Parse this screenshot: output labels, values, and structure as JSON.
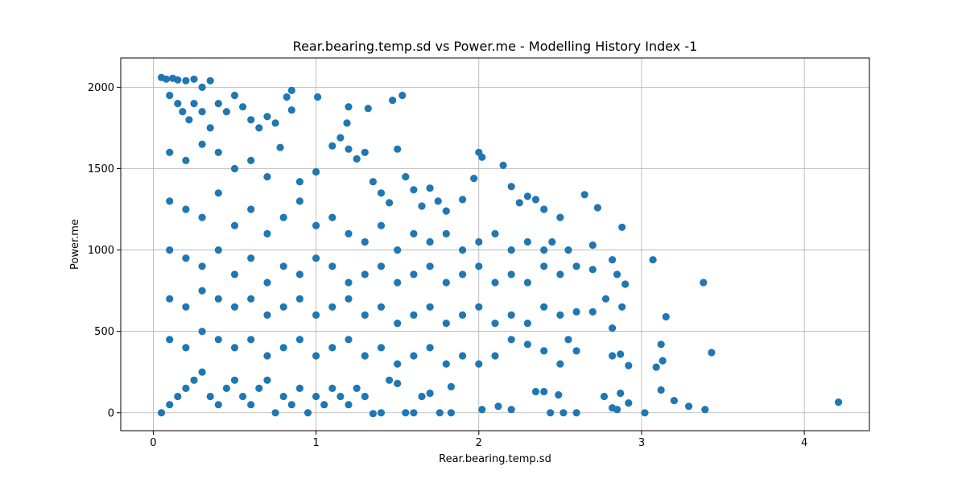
{
  "chart_data": {
    "type": "scatter",
    "title": "Rear.bearing.temp.sd vs Power.me - Modelling History Index -1",
    "xlabel": "Rear.bearing.temp.sd",
    "ylabel": "Power.me",
    "xlim": [
      -0.2,
      4.4
    ],
    "ylim": [
      -110,
      2180
    ],
    "xticks": [
      0,
      1,
      2,
      3,
      4
    ],
    "xtick_labels": [
      "0",
      "1",
      "2",
      "3",
      "4"
    ],
    "yticks": [
      0,
      500,
      1000,
      1500,
      2000
    ],
    "ytick_labels": [
      "0",
      "500",
      "1000",
      "1500",
      "2000"
    ],
    "grid": true,
    "marker_color": "#1f77b4",
    "series": [
      {
        "points": [
          [
            0.05,
            2060
          ],
          [
            0.08,
            2050
          ],
          [
            0.12,
            2055
          ],
          [
            0.15,
            2045
          ],
          [
            0.2,
            2040
          ],
          [
            0.25,
            2050
          ],
          [
            0.3,
            2000
          ],
          [
            0.35,
            2040
          ],
          [
            0.1,
            1950
          ],
          [
            0.15,
            1900
          ],
          [
            0.18,
            1850
          ],
          [
            0.22,
            1800
          ],
          [
            0.25,
            1900
          ],
          [
            0.3,
            1850
          ],
          [
            0.35,
            1750
          ],
          [
            0.4,
            1900
          ],
          [
            0.45,
            1850
          ],
          [
            0.5,
            1950
          ],
          [
            0.55,
            1880
          ],
          [
            0.6,
            1800
          ],
          [
            0.65,
            1750
          ],
          [
            0.7,
            1820
          ],
          [
            0.75,
            1780
          ],
          [
            0.82,
            1940
          ],
          [
            0.85,
            1980
          ],
          [
            0.85,
            1860
          ],
          [
            1.01,
            1940
          ],
          [
            1.2,
            1880
          ],
          [
            1.19,
            1780
          ],
          [
            1.32,
            1870
          ],
          [
            1.47,
            1920
          ],
          [
            1.53,
            1950
          ],
          [
            0.1,
            1600
          ],
          [
            0.2,
            1550
          ],
          [
            0.3,
            1650
          ],
          [
            0.4,
            1600
          ],
          [
            0.5,
            1500
          ],
          [
            0.6,
            1550
          ],
          [
            0.7,
            1450
          ],
          [
            0.78,
            1630
          ],
          [
            0.9,
            1420
          ],
          [
            1.0,
            1480
          ],
          [
            1.1,
            1640
          ],
          [
            1.15,
            1690
          ],
          [
            1.2,
            1620
          ],
          [
            1.25,
            1560
          ],
          [
            1.3,
            1600
          ],
          [
            1.35,
            1420
          ],
          [
            1.4,
            1350
          ],
          [
            1.45,
            1290
          ],
          [
            1.5,
            1620
          ],
          [
            1.55,
            1450
          ],
          [
            1.6,
            1370
          ],
          [
            1.65,
            1270
          ],
          [
            1.7,
            1380
          ],
          [
            1.75,
            1300
          ],
          [
            1.8,
            1240
          ],
          [
            1.9,
            1310
          ],
          [
            1.97,
            1440
          ],
          [
            2.0,
            1600
          ],
          [
            2.02,
            1570
          ],
          [
            2.15,
            1520
          ],
          [
            2.2,
            1390
          ],
          [
            2.25,
            1290
          ],
          [
            2.3,
            1330
          ],
          [
            2.35,
            1310
          ],
          [
            2.4,
            1250
          ],
          [
            2.5,
            1200
          ],
          [
            2.65,
            1340
          ],
          [
            2.73,
            1260
          ],
          [
            2.88,
            1140
          ],
          [
            0.1,
            1300
          ],
          [
            0.2,
            1250
          ],
          [
            0.3,
            1200
          ],
          [
            0.4,
            1350
          ],
          [
            0.5,
            1150
          ],
          [
            0.6,
            1250
          ],
          [
            0.7,
            1100
          ],
          [
            0.8,
            1200
          ],
          [
            0.9,
            1300
          ],
          [
            1.0,
            1150
          ],
          [
            1.1,
            1200
          ],
          [
            1.2,
            1100
          ],
          [
            1.3,
            1050
          ],
          [
            1.4,
            1150
          ],
          [
            1.5,
            1000
          ],
          [
            1.6,
            1100
          ],
          [
            1.7,
            1050
          ],
          [
            1.8,
            1100
          ],
          [
            1.9,
            1000
          ],
          [
            2.0,
            1050
          ],
          [
            2.1,
            1100
          ],
          [
            2.2,
            1000
          ],
          [
            2.3,
            1050
          ],
          [
            2.4,
            1000
          ],
          [
            2.45,
            1050
          ],
          [
            2.55,
            1000
          ],
          [
            2.7,
            1030
          ],
          [
            3.07,
            940
          ],
          [
            2.82,
            940
          ],
          [
            0.1,
            1000
          ],
          [
            0.2,
            950
          ],
          [
            0.3,
            900
          ],
          [
            0.4,
            1000
          ],
          [
            0.5,
            850
          ],
          [
            0.6,
            950
          ],
          [
            0.7,
            800
          ],
          [
            0.8,
            900
          ],
          [
            0.9,
            850
          ],
          [
            1.0,
            950
          ],
          [
            1.1,
            900
          ],
          [
            1.2,
            800
          ],
          [
            1.3,
            850
          ],
          [
            1.4,
            900
          ],
          [
            1.5,
            800
          ],
          [
            1.6,
            850
          ],
          [
            1.7,
            900
          ],
          [
            1.8,
            800
          ],
          [
            1.9,
            850
          ],
          [
            2.0,
            900
          ],
          [
            2.1,
            800
          ],
          [
            2.2,
            850
          ],
          [
            2.3,
            800
          ],
          [
            2.4,
            900
          ],
          [
            2.5,
            850
          ],
          [
            2.6,
            900
          ],
          [
            2.7,
            880
          ],
          [
            2.85,
            850
          ],
          [
            2.9,
            790
          ],
          [
            3.38,
            800
          ],
          [
            0.1,
            700
          ],
          [
            0.2,
            650
          ],
          [
            0.3,
            750
          ],
          [
            0.4,
            700
          ],
          [
            0.5,
            650
          ],
          [
            0.6,
            700
          ],
          [
            0.7,
            600
          ],
          [
            0.8,
            650
          ],
          [
            0.9,
            700
          ],
          [
            1.0,
            600
          ],
          [
            1.1,
            650
          ],
          [
            1.2,
            700
          ],
          [
            1.3,
            600
          ],
          [
            1.4,
            650
          ],
          [
            1.5,
            550
          ],
          [
            1.6,
            600
          ],
          [
            1.7,
            650
          ],
          [
            1.8,
            550
          ],
          [
            1.9,
            600
          ],
          [
            2.0,
            650
          ],
          [
            2.1,
            550
          ],
          [
            2.2,
            600
          ],
          [
            2.3,
            550
          ],
          [
            2.4,
            650
          ],
          [
            2.5,
            600
          ],
          [
            2.6,
            620
          ],
          [
            2.7,
            620
          ],
          [
            2.78,
            700
          ],
          [
            2.82,
            520
          ],
          [
            2.88,
            650
          ],
          [
            3.15,
            590
          ],
          [
            0.1,
            450
          ],
          [
            0.2,
            400
          ],
          [
            0.3,
            500
          ],
          [
            0.4,
            450
          ],
          [
            0.5,
            400
          ],
          [
            0.6,
            450
          ],
          [
            0.7,
            350
          ],
          [
            0.8,
            400
          ],
          [
            0.9,
            450
          ],
          [
            1.0,
            350
          ],
          [
            1.1,
            400
          ],
          [
            1.2,
            450
          ],
          [
            1.3,
            350
          ],
          [
            1.4,
            400
          ],
          [
            1.5,
            300
          ],
          [
            1.6,
            350
          ],
          [
            1.7,
            400
          ],
          [
            1.8,
            300
          ],
          [
            1.9,
            350
          ],
          [
            2.0,
            300
          ],
          [
            2.1,
            350
          ],
          [
            2.2,
            450
          ],
          [
            2.3,
            420
          ],
          [
            2.4,
            380
          ],
          [
            2.5,
            300
          ],
          [
            2.55,
            450
          ],
          [
            2.6,
            380
          ],
          [
            2.82,
            350
          ],
          [
            2.87,
            360
          ],
          [
            2.92,
            290
          ],
          [
            3.12,
            420
          ],
          [
            3.13,
            320
          ],
          [
            3.09,
            280
          ],
          [
            3.43,
            370
          ],
          [
            0.05,
            0
          ],
          [
            0.1,
            50
          ],
          [
            0.15,
            100
          ],
          [
            0.2,
            150
          ],
          [
            0.25,
            200
          ],
          [
            0.3,
            250
          ],
          [
            0.35,
            100
          ],
          [
            0.4,
            50
          ],
          [
            0.45,
            150
          ],
          [
            0.5,
            200
          ],
          [
            0.55,
            100
          ],
          [
            0.6,
            50
          ],
          [
            0.65,
            150
          ],
          [
            0.7,
            200
          ],
          [
            0.75,
            0
          ],
          [
            0.8,
            100
          ],
          [
            0.85,
            50
          ],
          [
            0.9,
            150
          ],
          [
            0.95,
            0
          ],
          [
            1.0,
            100
          ],
          [
            1.05,
            50
          ],
          [
            1.1,
            150
          ],
          [
            1.15,
            100
          ],
          [
            1.2,
            50
          ],
          [
            1.25,
            150
          ],
          [
            1.3,
            100
          ],
          [
            1.35,
            -5
          ],
          [
            1.4,
            0
          ],
          [
            1.45,
            200
          ],
          [
            1.5,
            180
          ],
          [
            1.55,
            0
          ],
          [
            1.6,
            0
          ],
          [
            1.65,
            100
          ],
          [
            1.7,
            120
          ],
          [
            1.76,
            0
          ],
          [
            1.83,
            160
          ],
          [
            1.83,
            0
          ],
          [
            2.02,
            20
          ],
          [
            2.12,
            40
          ],
          [
            2.2,
            20
          ],
          [
            2.35,
            130
          ],
          [
            2.4,
            130
          ],
          [
            2.44,
            0
          ],
          [
            2.49,
            110
          ],
          [
            2.52,
            0
          ],
          [
            2.6,
            0
          ],
          [
            2.77,
            100
          ],
          [
            2.82,
            30
          ],
          [
            2.85,
            20
          ],
          [
            2.87,
            120
          ],
          [
            2.92,
            60
          ],
          [
            3.02,
            0
          ],
          [
            3.12,
            140
          ],
          [
            3.2,
            75
          ],
          [
            3.29,
            40
          ],
          [
            3.39,
            20
          ],
          [
            4.21,
            65
          ]
        ]
      }
    ]
  }
}
